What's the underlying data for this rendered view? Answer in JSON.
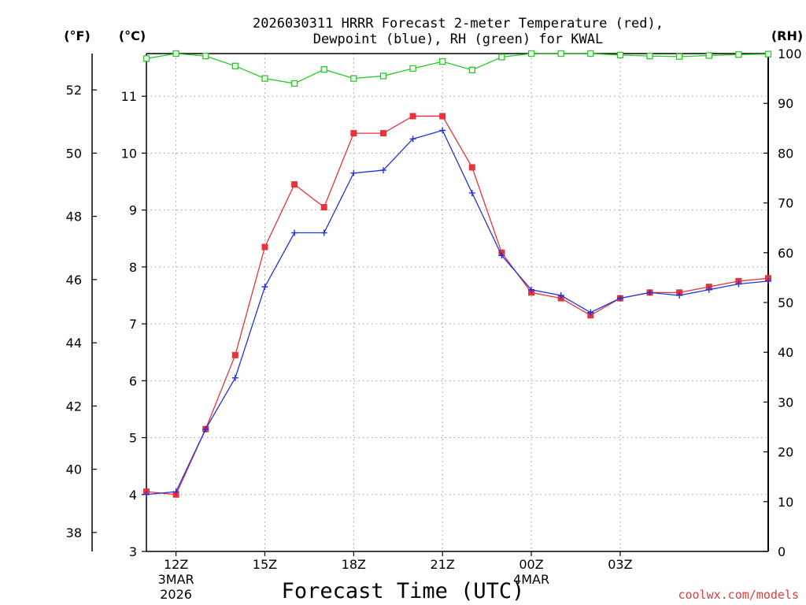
{
  "chart_data": {
    "type": "line",
    "title_line1": "2026030311 HRRR Forecast 2-meter Temperature (red),",
    "title_line2": "Dewpoint (blue), RH (green) for KWAL",
    "xlabel": "Forecast Time (UTC)",
    "credit": "coolwx.com/models",
    "units": {
      "fahrenheit": "(°F)",
      "celsius": "(°C)",
      "rh": "(RH)"
    },
    "x_hours": [
      0,
      1,
      2,
      3,
      4,
      5,
      6,
      7,
      8,
      9,
      10,
      11,
      12,
      13,
      14,
      15,
      16,
      17,
      18,
      19,
      20,
      21
    ],
    "x_range": [
      0,
      21
    ],
    "x_ticks": [
      {
        "hour": 1,
        "label": "12Z",
        "sub1": "3MAR",
        "sub2": "2026"
      },
      {
        "hour": 4,
        "label": "15Z",
        "sub1": "",
        "sub2": ""
      },
      {
        "hour": 7,
        "label": "18Z",
        "sub1": "",
        "sub2": ""
      },
      {
        "hour": 10,
        "label": "21Z",
        "sub1": "",
        "sub2": ""
      },
      {
        "hour": 13,
        "label": "00Z",
        "sub1": "4MAR",
        "sub2": ""
      },
      {
        "hour": 16,
        "label": "03Z",
        "sub1": "",
        "sub2": ""
      }
    ],
    "celsius_range": [
      3,
      11.75
    ],
    "celsius_ticks": [
      3,
      4,
      5,
      6,
      7,
      8,
      9,
      10,
      11
    ],
    "fahrenheit_ticks": [
      38,
      40,
      42,
      44,
      46,
      48,
      50,
      52
    ],
    "rh_range": [
      0,
      100
    ],
    "rh_ticks": [
      0,
      10,
      20,
      30,
      40,
      50,
      60,
      70,
      80,
      90,
      100
    ],
    "grid": true,
    "series": [
      {
        "name": "Temperature",
        "axis": "celsius",
        "color": "#e8333a",
        "marker": "filled-square",
        "values": [
          4.05,
          4.0,
          5.15,
          6.45,
          8.35,
          9.45,
          9.05,
          10.35,
          10.35,
          10.65,
          10.65,
          9.75,
          8.25,
          7.55,
          7.45,
          7.15,
          7.45,
          7.55,
          7.55,
          7.65,
          7.75,
          7.8
        ]
      },
      {
        "name": "Dewpoint",
        "axis": "celsius",
        "color": "#2233dd",
        "marker": "plus",
        "values": [
          4.0,
          4.05,
          5.15,
          6.05,
          7.65,
          8.6,
          8.6,
          9.65,
          9.7,
          10.25,
          10.4,
          9.3,
          8.2,
          7.6,
          7.5,
          7.2,
          7.45,
          7.55,
          7.5,
          7.6,
          7.7,
          7.75
        ]
      },
      {
        "name": "RH",
        "axis": "rh",
        "color": "#22cc22",
        "marker": "open-square",
        "values": [
          99,
          100,
          99.5,
          97.5,
          95,
          94,
          96.8,
          95,
          95.5,
          97,
          98.4,
          96.7,
          99.3,
          100,
          100,
          100,
          99.7,
          99.5,
          99.4,
          99.6,
          99.8,
          99.9
        ]
      }
    ]
  }
}
